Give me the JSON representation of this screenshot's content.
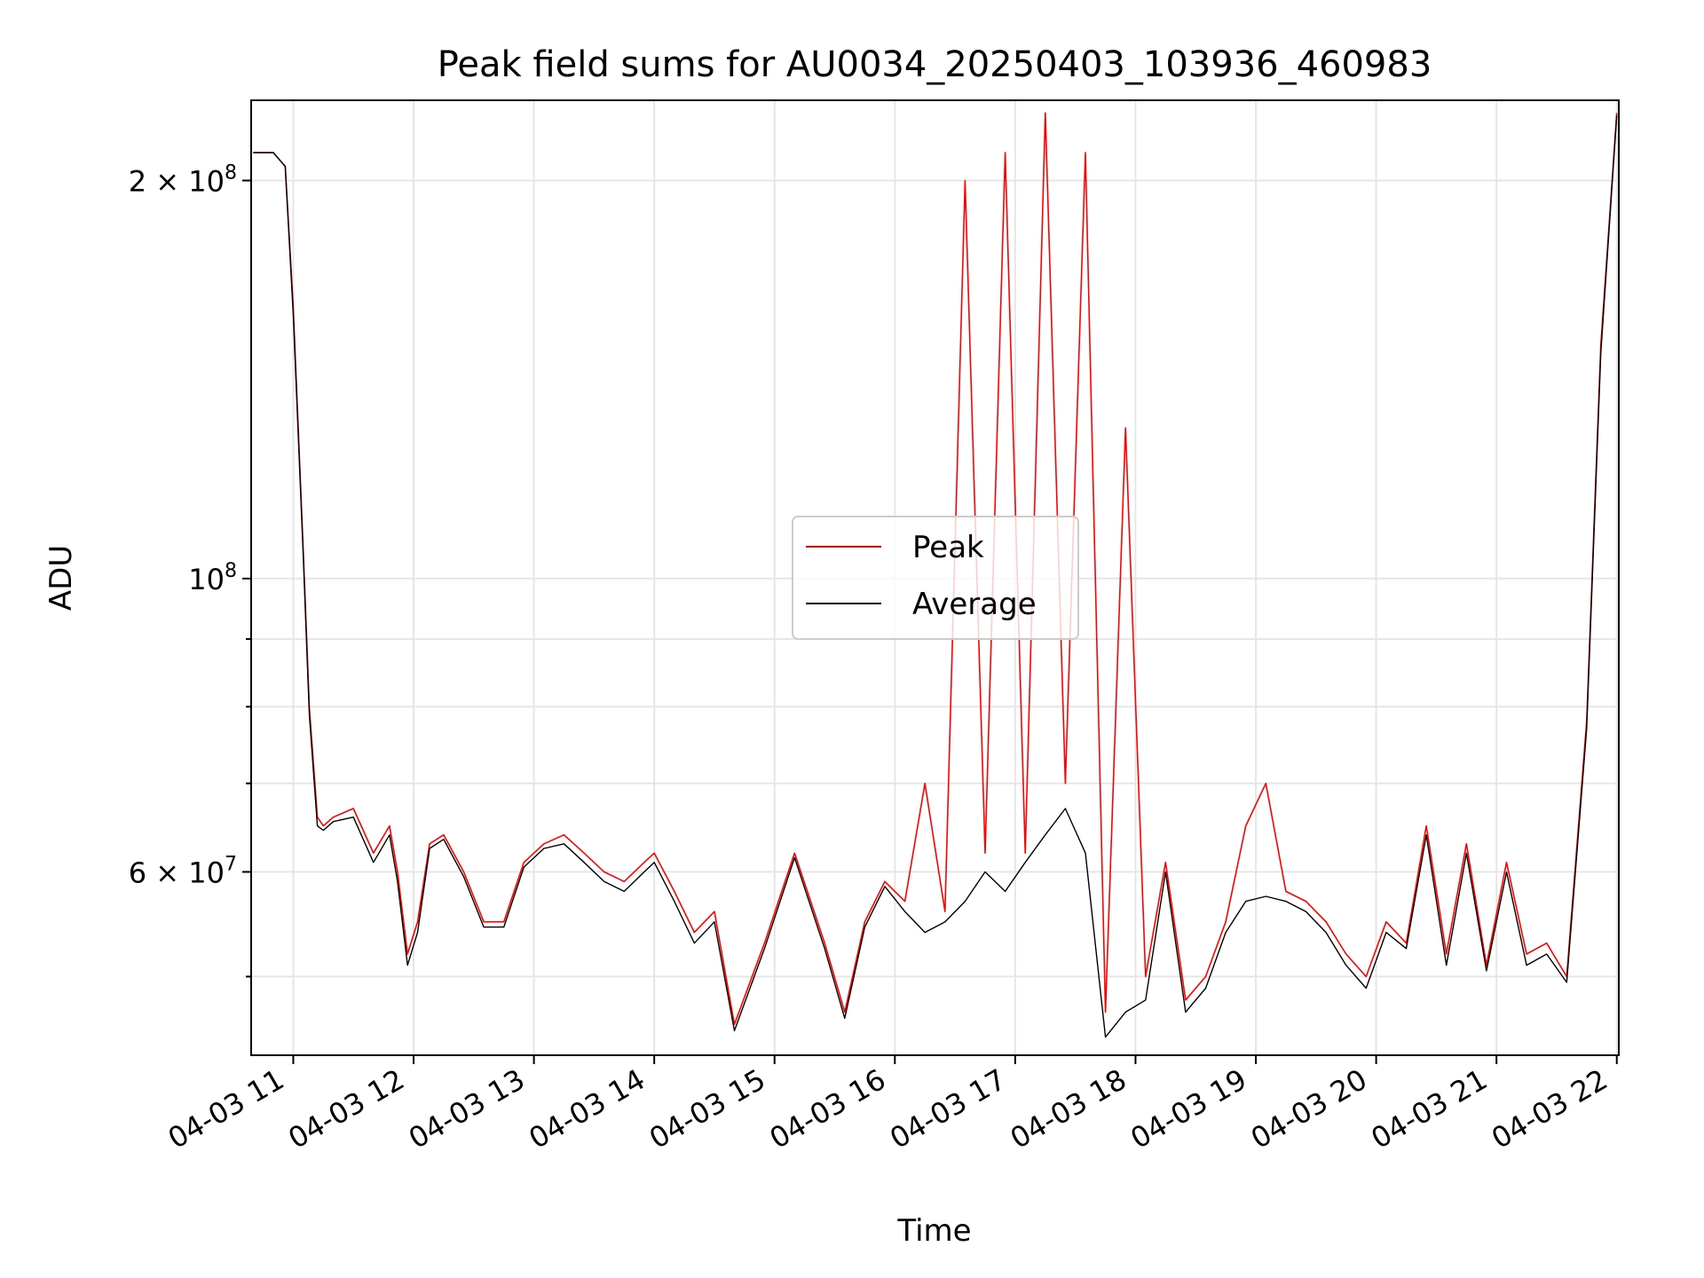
{
  "chart_data": {
    "type": "line",
    "title": "Peak field sums for AU0034_20250403_103936_460983",
    "xlabel": "Time",
    "ylabel": "ADU",
    "yscale": "log",
    "grid": true,
    "legend_position": "center",
    "xlim": [
      "2025-04-03 10:39",
      "2025-04-03 22:01"
    ],
    "ylim": [
      43600000,
      230000000
    ],
    "x_tick_labels": [
      "04-03 11",
      "04-03 12",
      "04-03 13",
      "04-03 14",
      "04-03 15",
      "04-03 16",
      "04-03 17",
      "04-03 18",
      "04-03 19",
      "04-03 20",
      "04-03 21",
      "04-03 22"
    ],
    "y_tick_labels": [
      {
        "value": 200000000,
        "base": "2 × 10",
        "exp": "8"
      },
      {
        "value": 100000000,
        "base": "10",
        "exp": "8"
      },
      {
        "value": 60000000,
        "base": "6 × 10",
        "exp": "7"
      }
    ],
    "y_minor_ticks": [
      50000000,
      70000000,
      80000000,
      90000000
    ],
    "x": [
      "10:40",
      "10:50",
      "10:56",
      "11:00",
      "11:05",
      "11:08",
      "11:12",
      "11:15",
      "11:20",
      "11:30",
      "11:40",
      "11:48",
      "11:52",
      "11:57",
      "12:02",
      "12:08",
      "12:15",
      "12:25",
      "12:35",
      "12:45",
      "12:55",
      "13:05",
      "13:15",
      "13:25",
      "13:35",
      "13:45",
      "13:55",
      "14:00",
      "14:10",
      "14:20",
      "14:30",
      "14:40",
      "14:55",
      "15:10",
      "15:25",
      "15:35",
      "15:45",
      "15:55",
      "16:05",
      "16:15",
      "16:25",
      "16:35",
      "16:45",
      "16:55",
      "17:05",
      "17:15",
      "17:25",
      "17:35",
      "17:45",
      "17:55",
      "18:05",
      "18:15",
      "18:25",
      "18:35",
      "18:45",
      "18:55",
      "19:05",
      "19:15",
      "19:25",
      "19:35",
      "19:45",
      "19:55",
      "20:05",
      "20:15",
      "20:25",
      "20:35",
      "20:45",
      "20:55",
      "21:05",
      "21:15",
      "21:25",
      "21:35",
      "21:45",
      "21:52",
      "22:00"
    ],
    "series": [
      {
        "name": "Peak",
        "color": "#ff0000",
        "values": [
          210000000,
          210000000,
          205000000,
          160000000,
          105000000,
          80000000,
          66000000,
          65000000,
          66000000,
          67000000,
          62000000,
          65000000,
          60000000,
          52000000,
          55000000,
          63000000,
          64000000,
          60000000,
          55000000,
          55000000,
          61000000,
          63000000,
          64000000,
          62000000,
          60000000,
          59000000,
          61000000,
          62000000,
          58000000,
          54000000,
          56000000,
          46000000,
          53000000,
          62000000,
          53000000,
          47000000,
          55000000,
          59000000,
          57000000,
          70000000,
          56000000,
          200000000,
          62000000,
          210000000,
          62000000,
          225000000,
          70000000,
          210000000,
          47000000,
          130000000,
          50000000,
          61000000,
          48000000,
          50000000,
          55000000,
          65000000,
          70000000,
          58000000,
          57000000,
          55000000,
          52000000,
          50000000,
          55000000,
          53000000,
          65000000,
          52000000,
          63000000,
          51000000,
          61000000,
          52000000,
          53000000,
          50000000,
          78000000,
          150000000,
          225000000
        ]
      },
      {
        "name": "Average",
        "color": "#000000",
        "values": [
          210000000,
          210000000,
          205000000,
          158000000,
          104000000,
          79000000,
          65000000,
          64500000,
          65500000,
          66000000,
          61000000,
          64000000,
          59000000,
          51000000,
          54000000,
          62500000,
          63500000,
          59500000,
          54500000,
          54500000,
          60500000,
          62500000,
          63000000,
          61000000,
          59000000,
          58000000,
          60000000,
          61000000,
          57000000,
          53000000,
          55000000,
          45500000,
          52500000,
          61500000,
          52500000,
          46500000,
          54500000,
          58500000,
          56000000,
          54000000,
          55000000,
          57000000,
          60000000,
          58000000,
          61000000,
          64000000,
          67000000,
          62000000,
          45000000,
          47000000,
          48000000,
          60000000,
          47000000,
          49000000,
          54000000,
          57000000,
          57500000,
          57000000,
          56000000,
          54000000,
          51000000,
          49000000,
          54000000,
          52500000,
          64000000,
          51000000,
          62000000,
          50500000,
          60000000,
          51000000,
          52000000,
          49500000,
          77000000,
          148000000,
          224000000
        ]
      }
    ]
  }
}
